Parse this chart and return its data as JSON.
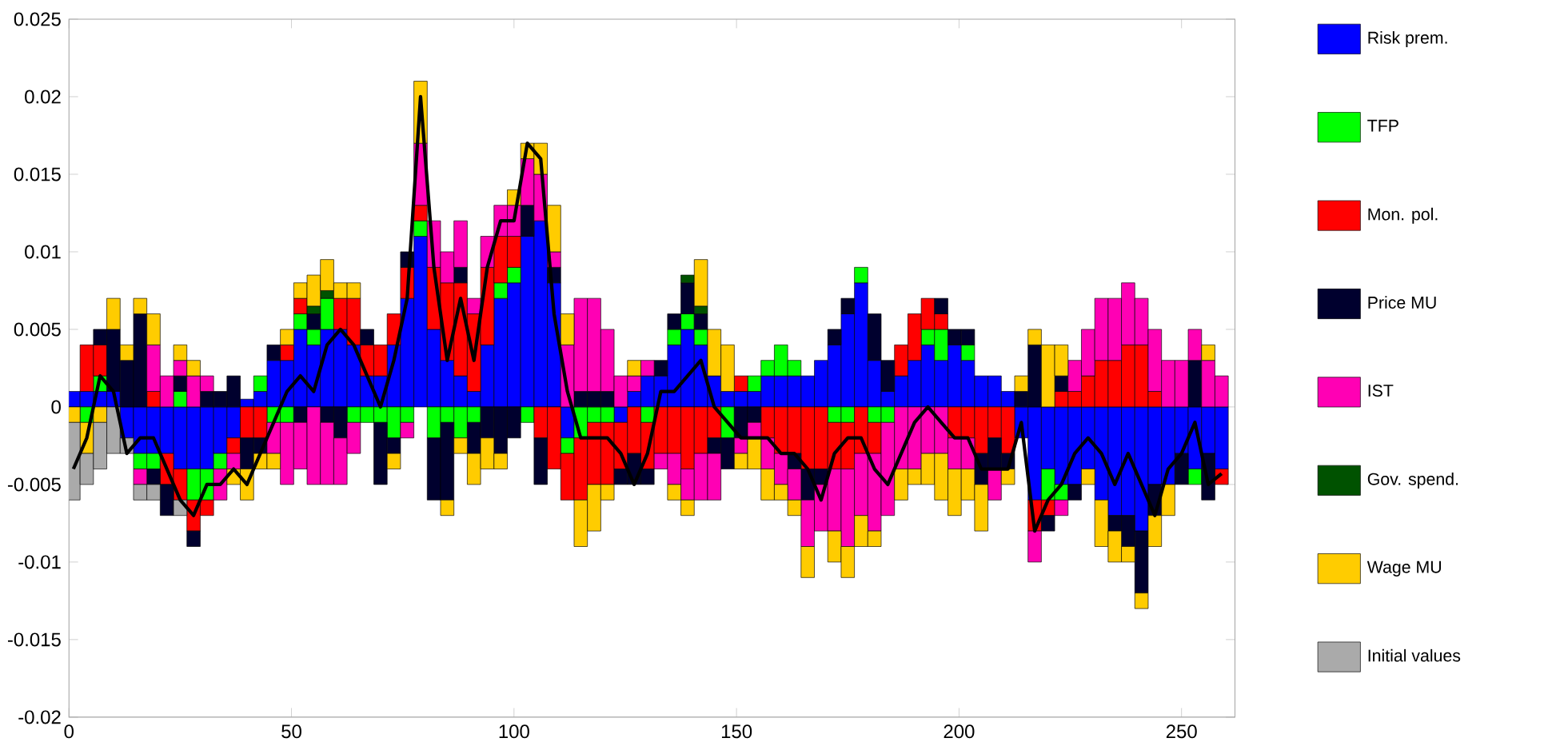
{
  "chart_data": {
    "type": "bar",
    "stacked": true,
    "legend": "right",
    "xlim": [
      0,
      262
    ],
    "ylim": [
      -0.02,
      0.025
    ],
    "xticks": [
      0,
      50,
      100,
      150,
      200,
      250
    ],
    "yticks": [
      -0.02,
      -0.015,
      -0.01,
      -0.005,
      0,
      0.005,
      0.01,
      0.015,
      0.02,
      0.025
    ],
    "x": [
      1,
      4,
      7,
      10,
      13,
      16,
      19,
      22,
      25,
      28,
      31,
      34,
      37,
      40,
      43,
      46,
      49,
      52,
      55,
      58,
      61,
      64,
      67,
      70,
      73,
      76,
      79,
      82,
      85,
      88,
      91,
      94,
      97,
      100,
      103,
      106,
      109,
      112,
      115,
      118,
      121,
      124,
      127,
      130,
      133,
      136,
      139,
      142,
      145,
      148,
      151,
      154,
      157,
      160,
      163,
      166,
      169,
      172,
      175,
      178,
      181,
      184,
      187,
      190,
      193,
      196,
      199,
      202,
      205,
      208,
      211,
      214,
      217,
      220,
      223,
      226,
      229,
      232,
      235,
      238,
      241,
      244,
      247,
      250,
      253,
      256,
      259
    ],
    "series": [
      {
        "name": "Risk prem.",
        "color": "#0000ff",
        "values": [
          0.001,
          0.001,
          0.001,
          0.001,
          -0.002,
          -0.003,
          -0.003,
          -0.003,
          -0.004,
          -0.004,
          -0.004,
          -0.003,
          -0.002,
          0.0005,
          0.001,
          0.003,
          0.003,
          0.005,
          0.004,
          0.005,
          0.005,
          0.004,
          0.002,
          0.002,
          0.004,
          0.007,
          0.011,
          0.005,
          0.003,
          0.002,
          0.001,
          0.004,
          0.007,
          0.008,
          0.011,
          0.012,
          0.008,
          -0.002,
          0,
          0,
          0,
          -0.001,
          0.001,
          0.002,
          0.002,
          0.004,
          0.005,
          0.004,
          0.002,
          0.001,
          0.001,
          0.001,
          0.002,
          0.002,
          0.002,
          0.002,
          0.003,
          0.004,
          0.006,
          0.008,
          0.003,
          0.001,
          0.002,
          0.003,
          0.004,
          0.003,
          0.004,
          0.003,
          0.002,
          0.002,
          0.001,
          -0.002,
          -0.006,
          -0.004,
          -0.005,
          -0.005,
          -0.004,
          -0.006,
          -0.007,
          -0.007,
          -0.008,
          -0.005,
          -0.005,
          -0.003,
          -0.004,
          -0.003,
          -0.004
        ]
      },
      {
        "name": "TFP",
        "color": "#00ff00",
        "values": [
          0,
          -0.001,
          0.001,
          0,
          0,
          -0.001,
          -0.001,
          0,
          0.001,
          -0.002,
          -0.002,
          -0.001,
          0,
          0,
          0.001,
          -0.001,
          -0.001,
          0.001,
          0.001,
          0.002,
          0,
          -0.001,
          -0.001,
          -0.001,
          -0.002,
          -0.001,
          0.001,
          -0.002,
          -0.001,
          -0.002,
          -0.001,
          0,
          0.001,
          0.001,
          -0.001,
          0,
          0,
          -0.001,
          -0.002,
          -0.001,
          -0.001,
          0,
          0,
          -0.001,
          0,
          0.001,
          0.001,
          0.001,
          0,
          -0.002,
          0,
          0.001,
          0.001,
          0.002,
          0.001,
          0,
          0,
          -0.001,
          -0.001,
          0.001,
          -0.001,
          -0.001,
          0,
          0,
          0.001,
          0.002,
          0,
          0.001,
          0,
          0,
          0,
          0,
          0,
          -0.002,
          -0.001,
          0,
          0,
          0,
          0,
          0,
          0,
          0,
          0,
          0,
          -0.001,
          0,
          0
        ]
      },
      {
        "name": "Mon. pol.",
        "color": "#ff0000",
        "values": [
          0,
          0.003,
          0.002,
          0,
          0,
          0,
          0.001,
          -0.002,
          -0.002,
          -0.002,
          -0.001,
          0,
          -0.001,
          -0.002,
          -0.002,
          0,
          0.001,
          0.001,
          0,
          0,
          0.002,
          0.003,
          0.002,
          0.002,
          0.002,
          0.002,
          0.001,
          0.004,
          0.005,
          0.006,
          0.005,
          0.005,
          0.003,
          0.002,
          0,
          -0.002,
          -0.004,
          -0.003,
          -0.004,
          -0.004,
          -0.004,
          -0.003,
          -0.003,
          -0.003,
          -0.003,
          -0.003,
          -0.004,
          -0.003,
          -0.002,
          0,
          0.001,
          0,
          -0.002,
          -0.003,
          -0.003,
          -0.004,
          -0.004,
          -0.003,
          -0.003,
          -0.003,
          -0.002,
          0,
          0.002,
          0.003,
          0.002,
          0.001,
          -0.002,
          -0.002,
          -0.003,
          -0.002,
          -0.003,
          0,
          -0.002,
          -0.001,
          0.001,
          0.001,
          0.002,
          0.003,
          0.003,
          0.004,
          0.004,
          0.001,
          0,
          0,
          0,
          0,
          -0.001
        ]
      },
      {
        "name": "Price MU",
        "color": "#00002e",
        "values": [
          0,
          0,
          0.001,
          0.004,
          0.003,
          0.006,
          -0.001,
          -0.002,
          0.001,
          -0.001,
          0.001,
          0.001,
          0.002,
          -0.002,
          -0.001,
          0.001,
          0,
          -0.001,
          0.001,
          -0.001,
          -0.002,
          0,
          0.001,
          -0.004,
          -0.001,
          0.001,
          0,
          -0.004,
          -0.005,
          0.001,
          -0.002,
          -0.002,
          -0.003,
          -0.002,
          0.002,
          -0.003,
          0.001,
          0,
          0.001,
          0.001,
          0.001,
          -0.001,
          -0.002,
          -0.001,
          0.001,
          0.001,
          0.002,
          0.001,
          -0.001,
          -0.002,
          -0.002,
          -0.001,
          0,
          0,
          -0.001,
          -0.002,
          -0.001,
          0.001,
          0.001,
          0,
          0.003,
          0.002,
          0,
          0,
          0,
          0.001,
          0.001,
          0.001,
          -0.002,
          -0.002,
          -0.001,
          0.001,
          0.004,
          -0.001,
          0.001,
          -0.001,
          0,
          0,
          -0.001,
          -0.002,
          -0.004,
          -0.002,
          0,
          -0.002,
          0.003,
          -0.003,
          0
        ]
      },
      {
        "name": "IST",
        "color": "#ff00b4",
        "values": [
          0,
          0,
          0,
          0,
          0,
          -0.001,
          0.003,
          0.002,
          0.001,
          0.002,
          0.001,
          -0.002,
          -0.001,
          0,
          0,
          -0.002,
          -0.004,
          -0.003,
          -0.005,
          -0.004,
          -0.003,
          -0.002,
          0,
          0,
          0,
          -0.001,
          0.004,
          0.003,
          0.002,
          0.003,
          0.001,
          0.002,
          0.002,
          0.002,
          0.003,
          0.003,
          0.001,
          0.004,
          0.006,
          0.006,
          0.004,
          0.002,
          0.001,
          0.001,
          -0.001,
          -0.002,
          -0.002,
          -0.003,
          -0.003,
          0,
          -0.001,
          -0.001,
          -0.002,
          -0.002,
          -0.002,
          -0.003,
          -0.003,
          -0.004,
          -0.005,
          -0.004,
          -0.005,
          -0.006,
          -0.004,
          -0.004,
          -0.003,
          -0.003,
          -0.002,
          -0.002,
          0,
          -0.002,
          0,
          0,
          -0.002,
          0,
          -0.001,
          0.002,
          0.003,
          0.004,
          0.004,
          0.004,
          0.003,
          0.004,
          0.003,
          0.003,
          0.002,
          0.003,
          0.002
        ]
      },
      {
        "name": "Gov. spend.",
        "color": "#005200",
        "values": [
          0,
          0,
          0,
          0,
          0,
          0,
          0,
          0,
          0,
          0,
          0,
          0,
          0,
          0,
          0,
          0,
          0,
          0,
          0.0005,
          0.0005,
          0,
          0,
          0,
          0,
          0,
          0,
          0,
          0,
          0,
          0,
          0,
          0,
          0,
          0,
          0,
          0,
          0,
          0,
          0,
          0,
          0,
          0,
          0,
          0,
          0,
          0,
          0.0005,
          0.0005,
          0,
          0,
          0,
          0,
          0,
          0,
          0,
          0,
          0,
          0,
          0,
          0,
          0,
          0,
          0,
          0,
          0,
          0,
          0,
          0,
          0,
          0,
          0,
          0,
          0,
          0,
          0,
          0,
          0,
          0,
          0,
          0,
          0,
          0,
          0,
          0,
          0,
          0,
          0
        ]
      },
      {
        "name": "Wage MU",
        "color": "#ffcc00",
        "values": [
          -0.001,
          -0.002,
          -0.001,
          0.002,
          0.001,
          0.001,
          0.002,
          0,
          0.001,
          0.001,
          0,
          0,
          -0.001,
          -0.002,
          -0.001,
          -0.001,
          0.001,
          0.001,
          0.002,
          0.002,
          0.001,
          0.001,
          0,
          0,
          -0.001,
          0,
          0.004,
          0,
          -0.001,
          -0.001,
          -0.002,
          -0.002,
          -0.001,
          0.001,
          0.001,
          0.002,
          0.003,
          0.002,
          -0.003,
          -0.003,
          -0.001,
          0,
          0.001,
          0,
          0,
          -0.001,
          -0.001,
          0.003,
          0.003,
          0.003,
          -0.001,
          -0.002,
          -0.002,
          -0.001,
          -0.001,
          -0.002,
          0,
          -0.002,
          -0.002,
          -0.002,
          -0.001,
          0,
          -0.002,
          -0.001,
          -0.002,
          -0.003,
          -0.003,
          -0.002,
          -0.003,
          0,
          -0.001,
          0.001,
          0.001,
          0.004,
          0.002,
          0,
          -0.001,
          -0.003,
          -0.002,
          -0.001,
          -0.001,
          -0.002,
          -0.002,
          0,
          0,
          0.001,
          0
        ]
      },
      {
        "name": "Initial values",
        "color": "#aaaaaa",
        "values": [
          -0.005,
          -0.002,
          -0.003,
          -0.003,
          -0.001,
          -0.001,
          -0.001,
          0,
          -0.001,
          0,
          0,
          0,
          0,
          0,
          0,
          0,
          0,
          0,
          0,
          0,
          0,
          0,
          0,
          0,
          0,
          0,
          0,
          0,
          0,
          0,
          0,
          0,
          0,
          0,
          0,
          0,
          0,
          0,
          0,
          0,
          0,
          0,
          0,
          0,
          0,
          0,
          0,
          0,
          0,
          0,
          0,
          0,
          0,
          0,
          0,
          0,
          0,
          0,
          0,
          0,
          0,
          0,
          0,
          0,
          0,
          0,
          0,
          0,
          0,
          0,
          0,
          0,
          0,
          0,
          0,
          0,
          0,
          0,
          0,
          0,
          0,
          0,
          0,
          0,
          0,
          0,
          0
        ]
      },
      {
        "type": "line",
        "color": "#000000",
        "values": [
          -0.004,
          -0.002,
          0.002,
          0.001,
          -0.003,
          -0.002,
          -0.002,
          -0.004,
          -0.006,
          -0.007,
          -0.005,
          -0.005,
          -0.004,
          -0.005,
          -0.003,
          -0.001,
          0.001,
          0.002,
          0.001,
          0.004,
          0.005,
          0.004,
          0.002,
          0,
          0.003,
          0.007,
          0.02,
          0.009,
          0.003,
          0.007,
          0.003,
          0.009,
          0.012,
          0.012,
          0.017,
          0.016,
          0.006,
          0.001,
          -0.002,
          -0.002,
          -0.002,
          -0.003,
          -0.005,
          -0.003,
          0.001,
          0.001,
          0.002,
          0.003,
          0,
          -0.001,
          -0.002,
          -0.002,
          -0.002,
          -0.003,
          -0.003,
          -0.004,
          -0.006,
          -0.003,
          -0.002,
          -0.002,
          -0.004,
          -0.005,
          -0.003,
          -0.001,
          0,
          -0.001,
          -0.002,
          -0.002,
          -0.004,
          -0.004,
          -0.004,
          -0.001,
          -0.008,
          -0.006,
          -0.005,
          -0.003,
          -0.002,
          -0.003,
          -0.005,
          -0.003,
          -0.005,
          -0.007,
          -0.004,
          -0.003,
          -0.001,
          -0.005,
          -0.0043
        ]
      }
    ]
  }
}
